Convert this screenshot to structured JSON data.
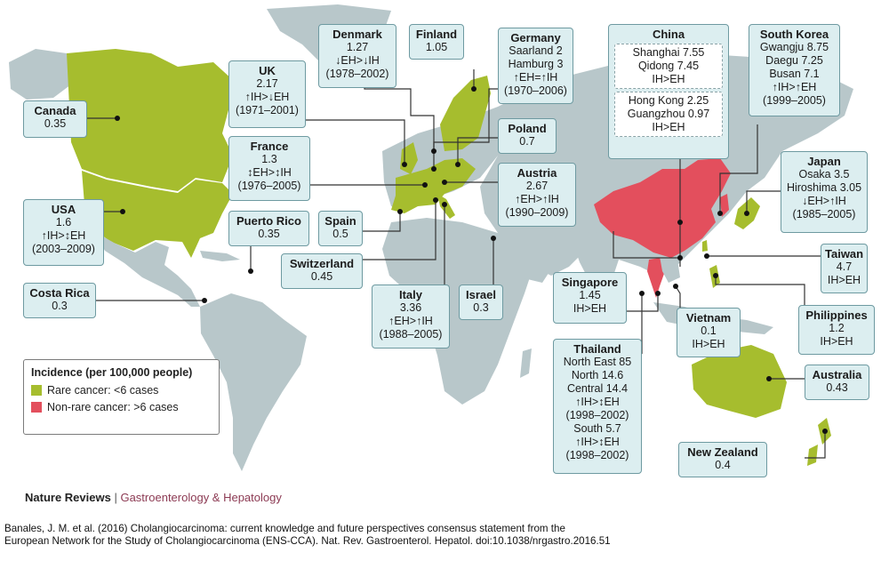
{
  "colors": {
    "rare": "#a6bd2e",
    "nonrare": "#e34f5d",
    "land": "#b8c7ca",
    "box_bg": "#dceef0"
  },
  "legend": {
    "title": "Incidence (per 100,000 people)",
    "rare": "Rare cancer: <6 cases",
    "nonrare": "Non-rare cancer: >6 cases"
  },
  "boxes": {
    "canada": {
      "name": "Canada",
      "lines": [
        "0.35"
      ]
    },
    "usa": {
      "name": "USA",
      "lines": [
        "1.6",
        "↑IH>↕EH",
        "(2003–2009)"
      ]
    },
    "costa_rica": {
      "name": "Costa Rica",
      "lines": [
        "0.3"
      ]
    },
    "puerto_rico": {
      "name": "Puerto Rico",
      "lines": [
        "0.35"
      ]
    },
    "uk": {
      "name": "UK",
      "lines": [
        "2.17",
        "↑IH>↓EH",
        "(1971–2001)"
      ]
    },
    "france": {
      "name": "France",
      "lines": [
        "1.3",
        "↕EH>↕IH",
        "(1976–2005)"
      ]
    },
    "denmark": {
      "name": "Denmark",
      "lines": [
        "1.27",
        "↓EH>↓IH",
        "(1978–2002)"
      ]
    },
    "finland": {
      "name": "Finland",
      "lines": [
        "1.05"
      ]
    },
    "germany": {
      "name": "Germany",
      "lines": [
        "Saarland 2",
        "Hamburg 3",
        "↑EH=↑IH",
        "(1970–2006)"
      ]
    },
    "poland": {
      "name": "Poland",
      "lines": [
        "0.7"
      ]
    },
    "austria": {
      "name": "Austria",
      "lines": [
        "2.67",
        "↑EH>↑IH",
        "(1990–2009)"
      ]
    },
    "spain": {
      "name": "Spain",
      "lines": [
        "0.5"
      ]
    },
    "switzerland": {
      "name": "Switzerland",
      "lines": [
        "0.45"
      ]
    },
    "italy": {
      "name": "Italy",
      "lines": [
        "3.36",
        "↑EH>↑IH",
        "(1988–2005)"
      ]
    },
    "israel": {
      "name": "Israel",
      "lines": [
        "0.3"
      ]
    },
    "china": {
      "name": "China",
      "sub1": [
        "Shanghai 7.55",
        "Qidong 7.45",
        "IH>EH"
      ],
      "sub2": [
        "Hong Kong 2.25",
        "Guangzhou 0.97",
        "IH>EH"
      ]
    },
    "south_korea": {
      "name": "South Korea",
      "lines": [
        "Gwangju 8.75",
        "Daegu 7.25",
        "Busan 7.1",
        "↑IH>↑EH",
        "(1999–2005)"
      ]
    },
    "japan": {
      "name": "Japan",
      "lines": [
        "Osaka 3.5",
        "Hiroshima 3.05",
        "↓EH>↑IH",
        "(1985–2005)"
      ]
    },
    "taiwan": {
      "name": "Taiwan",
      "lines": [
        "4.7",
        "IH>EH"
      ]
    },
    "singapore": {
      "name": "Singapore",
      "lines": [
        "1.45",
        "IH>EH"
      ]
    },
    "vietnam": {
      "name": "Vietnam",
      "lines": [
        "0.1",
        "IH>EH"
      ]
    },
    "philippines": {
      "name": "Philippines",
      "lines": [
        "1.2",
        "IH>EH"
      ]
    },
    "thailand": {
      "name": "Thailand",
      "lines": [
        "North East 85",
        "North 14.6",
        "Central 14.4",
        "↑IH>↕EH",
        "(1998–2002)",
        "South 5.7",
        "↑IH>↕EH",
        "(1998–2002)"
      ]
    },
    "australia": {
      "name": "Australia",
      "lines": [
        "0.43"
      ]
    },
    "new_zealand": {
      "name": "New Zealand",
      "lines": [
        "0.4"
      ]
    }
  },
  "footer": {
    "journal": "Nature Reviews",
    "separator": "|",
    "section": "Gastroenterology & Hepatology"
  },
  "citation": {
    "line1": "Banales, J. M. et al. (2016) Cholangiocarcinoma: current knowledge and future perspectives consensus statement from the",
    "line2": "European Network for the Study of Cholangiocarcinoma (ENS-CCA). Nat. Rev. Gastroenterol. Hepatol. doi:10.1038/nrgastro.2016.51"
  }
}
